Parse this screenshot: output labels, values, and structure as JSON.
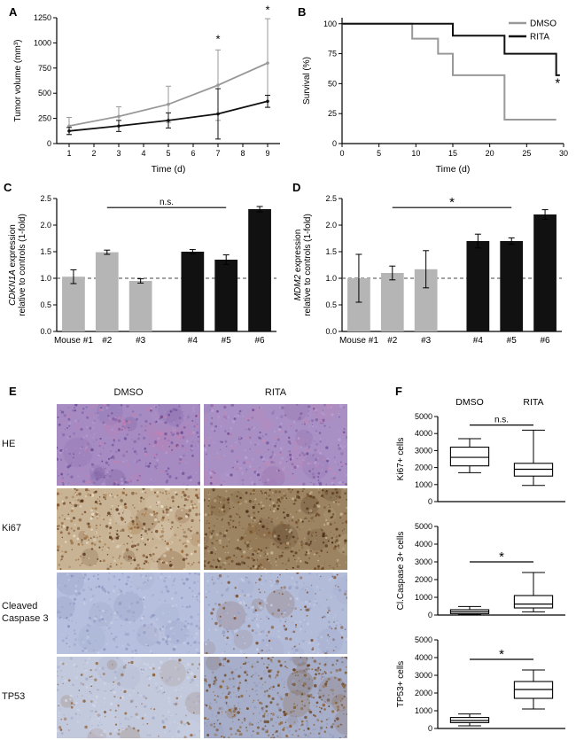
{
  "panels": {
    "a_label": "A",
    "b_label": "B",
    "c_label": "C",
    "d_label": "D",
    "e_label": "E",
    "f_label": "F"
  },
  "panel_e": {
    "col_headers": [
      "DMSO",
      "RITA"
    ],
    "rows": [
      {
        "key": "he",
        "label": "HE",
        "images": [
          {
            "base": "#a58bc2",
            "dot_colors": [
              "#7e5fa8",
              "#cb7fae",
              "#68478f",
              "#b79cd1"
            ],
            "density": 420,
            "blobs": 16
          },
          {
            "base": "#a88fc4",
            "dot_colors": [
              "#83629f",
              "#c987b2",
              "#6d4c94",
              "#baa1d4"
            ],
            "density": 420,
            "blobs": 16
          }
        ]
      },
      {
        "key": "ki67",
        "label": "Ki67",
        "images": [
          {
            "base": "#c8b394",
            "dot_colors": [
              "#7a4c28",
              "#9c6b3a",
              "#55321a",
              "#e8dcc8"
            ],
            "density": 500,
            "blobs": 14
          },
          {
            "base": "#9c8463",
            "dot_colors": [
              "#5e3a1d",
              "#7b5428",
              "#43260f",
              "#c9b896"
            ],
            "density": 560,
            "blobs": 14
          }
        ]
      },
      {
        "key": "cleaved-caspase-3",
        "label": "Cleaved Caspase 3",
        "images": [
          {
            "base": "#b6bfdd",
            "dot_colors": [
              "#98a2c8",
              "#8791bb",
              "#c9d0e6"
            ],
            "density": 340,
            "blobs": 12
          },
          {
            "base": "#b2bbd8",
            "dot_colors": [
              "#96a0c4",
              "#7a4a26",
              "#c6cde4"
            ],
            "density": 360,
            "blobs": 12
          }
        ]
      },
      {
        "key": "tp53",
        "label": "TP53",
        "images": [
          {
            "base": "#c3c9dd",
            "dot_colors": [
              "#a3abc8",
              "#8a5c30",
              "#d2d7e8"
            ],
            "density": 320,
            "blobs": 12
          },
          {
            "base": "#a7aec9",
            "dot_colors": [
              "#6b431e",
              "#8a5e2c",
              "#97a0bf"
            ],
            "density": 600,
            "blobs": 16
          }
        ]
      }
    ]
  },
  "chart_data": [
    {
      "id": "panelA",
      "type": "line",
      "xlabel": "Time (d)",
      "ylabel_lines": [
        [
          {
            "t": "Tumor volume (mm³)"
          }
        ]
      ],
      "xlim": [
        0.5,
        9.5
      ],
      "ylim": [
        0,
        1250
      ],
      "xtick_vals": [
        1,
        2,
        3,
        4,
        5,
        6,
        7,
        8,
        9
      ],
      "xtick_labels": [
        "1",
        "2",
        "3",
        "4",
        "5",
        "6",
        "7",
        "8",
        "9"
      ],
      "ytick_vals": [
        0,
        250,
        500,
        750,
        1000,
        1250
      ],
      "ytick_labels": [
        "0",
        "250",
        "500",
        "750",
        "1000",
        "1250"
      ],
      "series": [
        {
          "name": "DMSO",
          "color": "#999999",
          "x": [
            1,
            3,
            5,
            7,
            9
          ],
          "y": [
            175,
            270,
            390,
            580,
            800
          ],
          "err": [
            85,
            95,
            180,
            350,
            440
          ]
        },
        {
          "name": "RITA",
          "color": "#111111",
          "x": [
            1,
            3,
            5,
            7,
            9
          ],
          "y": [
            125,
            175,
            230,
            295,
            420
          ],
          "err": [
            35,
            55,
            75,
            250,
            60
          ]
        }
      ],
      "annotations": [
        {
          "text": "*",
          "x": 7,
          "y": 1000,
          "size": 13
        },
        {
          "text": "*",
          "x": 9,
          "y": 1290,
          "size": 13
        }
      ]
    },
    {
      "id": "panelB",
      "type": "step",
      "xlabel": "Time (d)",
      "ylabel_lines": [
        [
          {
            "t": "Survival (%)"
          }
        ]
      ],
      "xlim": [
        0,
        30
      ],
      "ylim": [
        0,
        105
      ],
      "xtick_vals": [
        0,
        5,
        10,
        15,
        20,
        25,
        30
      ],
      "xtick_labels": [
        "0",
        "5",
        "10",
        "15",
        "20",
        "25",
        "30"
      ],
      "ytick_vals": [
        0,
        25,
        50,
        75,
        100
      ],
      "ytick_labels": [
        "0",
        "25",
        "50",
        "75",
        "100"
      ],
      "series": [
        {
          "name": "DMSO",
          "color": "#999999",
          "points": [
            [
              0,
              100
            ],
            [
              9.5,
              100
            ],
            [
              9.5,
              87.5
            ],
            [
              13,
              87.5
            ],
            [
              13,
              75
            ],
            [
              15,
              75
            ],
            [
              15,
              57
            ],
            [
              22,
              57
            ],
            [
              22,
              20
            ],
            [
              29,
              20
            ]
          ]
        },
        {
          "name": "RITA",
          "color": "#111111",
          "points": [
            [
              0,
              100
            ],
            [
              15,
              100
            ],
            [
              15,
              90
            ],
            [
              22,
              90
            ],
            [
              22,
              75
            ],
            [
              29,
              75
            ],
            [
              29,
              57
            ],
            [
              29.5,
              57
            ]
          ]
        }
      ],
      "legend": [
        "DMSO",
        "RITA"
      ],
      "annotations": [
        {
          "text": "*",
          "x": 29.2,
          "y": 47,
          "size": 15
        }
      ]
    },
    {
      "id": "panelC",
      "type": "bar",
      "ylabel_lines": [
        [
          {
            "t": "CDKN1A",
            "i": true
          },
          {
            "t": " expression"
          }
        ],
        [
          {
            "t": "relative to controls (1-fold)"
          }
        ]
      ],
      "categories": [
        "Mouse #1",
        "#2",
        "#3",
        "#4",
        "#5",
        "#6"
      ],
      "values": [
        1.03,
        1.49,
        0.95,
        1.5,
        1.35,
        2.3
      ],
      "errors": [
        0.13,
        0.04,
        0.04,
        0.04,
        0.09,
        0.05
      ],
      "colors": [
        "#b5b5b5",
        "#b5b5b5",
        "#b5b5b5",
        "#111111",
        "#111111",
        "#111111"
      ],
      "ylim": [
        0,
        2.5
      ],
      "ytick_vals": [
        0,
        0.5,
        1,
        1.5,
        2,
        2.5
      ],
      "ytick_labels": [
        "0.0",
        "0.5",
        "1.0",
        "1.5",
        "2.0",
        "2.5"
      ],
      "dashed_line": 1.0,
      "gap_after": 2,
      "bracket": {
        "from": 1,
        "to": 4,
        "label": "n.s.",
        "y": 2.33
      }
    },
    {
      "id": "panelD",
      "type": "bar",
      "ylabel_lines": [
        [
          {
            "t": "MDM2",
            "i": true
          },
          {
            "t": " expression"
          }
        ],
        [
          {
            "t": "relative to controls (1-fold)"
          }
        ]
      ],
      "categories": [
        "Mouse #1",
        "#2",
        "#3",
        "#4",
        "#5",
        "#6"
      ],
      "values": [
        1.0,
        1.1,
        1.17,
        1.7,
        1.7,
        2.2
      ],
      "errors": [
        0.45,
        0.13,
        0.35,
        0.13,
        0.06,
        0.09
      ],
      "colors": [
        "#b5b5b5",
        "#b5b5b5",
        "#b5b5b5",
        "#111111",
        "#111111",
        "#111111"
      ],
      "ylim": [
        0,
        2.5
      ],
      "ytick_vals": [
        0,
        0.5,
        1,
        1.5,
        2,
        2.5
      ],
      "ytick_labels": [
        "0.0",
        "0.5",
        "1.0",
        "1.5",
        "2.0",
        "2.5"
      ],
      "dashed_line": 1.0,
      "gap_after": 2,
      "bracket": {
        "from": 1,
        "to": 4,
        "label": "*",
        "y": 2.33
      }
    },
    {
      "id": "panelF1",
      "type": "box",
      "ylabel_lines": [
        [
          {
            "t": "Ki67+ cells"
          }
        ]
      ],
      "categories": [
        "DMSO",
        "RITA"
      ],
      "show_cat_labels": true,
      "boxes": [
        {
          "low": 1700,
          "q1": 2100,
          "med": 2600,
          "q3": 3200,
          "high": 3700
        },
        {
          "low": 950,
          "q1": 1500,
          "med": 1900,
          "q3": 2250,
          "high": 4200
        }
      ],
      "ylim": [
        0,
        5000
      ],
      "ytick_vals": [
        0,
        1000,
        2000,
        3000,
        4000,
        5000
      ],
      "ytick_labels": [
        "0",
        "1000",
        "2000",
        "3000",
        "4000",
        "5000"
      ],
      "bracket": {
        "from": 0,
        "to": 1,
        "label": "n.s.",
        "y": 4500
      }
    },
    {
      "id": "panelF2",
      "type": "box",
      "ylabel_lines": [
        [
          {
            "t": "Cl.Caspase 3+ cells"
          }
        ]
      ],
      "categories": [
        "DMSO",
        "RITA"
      ],
      "show_cat_labels": false,
      "boxes": [
        {
          "low": 30,
          "q1": 80,
          "med": 180,
          "q3": 300,
          "high": 480
        },
        {
          "low": 180,
          "q1": 400,
          "med": 620,
          "q3": 1100,
          "high": 2400
        }
      ],
      "ylim": [
        0,
        5000
      ],
      "ytick_vals": [
        0,
        1000,
        2000,
        3000,
        4000,
        5000
      ],
      "ytick_labels": [
        "0",
        "1000",
        "2000",
        "3000",
        "4000",
        "5000"
      ],
      "bracket": {
        "from": 0,
        "to": 1,
        "label": "*",
        "y": 3000
      }
    },
    {
      "id": "panelF3",
      "type": "box",
      "ylabel_lines": [
        [
          {
            "t": "TP53+ cells"
          }
        ]
      ],
      "categories": [
        "DMSO",
        "RITA"
      ],
      "show_cat_labels": false,
      "boxes": [
        {
          "low": 150,
          "q1": 330,
          "med": 450,
          "q3": 620,
          "high": 820
        },
        {
          "low": 1100,
          "q1": 1700,
          "med": 2200,
          "q3": 2650,
          "high": 3300
        }
      ],
      "ylim": [
        0,
        5000
      ],
      "ytick_vals": [
        0,
        1000,
        2000,
        3000,
        4000,
        5000
      ],
      "ytick_labels": [
        "0",
        "1000",
        "2000",
        "3000",
        "4000",
        "5000"
      ],
      "bracket": {
        "from": 0,
        "to": 1,
        "label": "*",
        "y": 3900
      }
    }
  ]
}
